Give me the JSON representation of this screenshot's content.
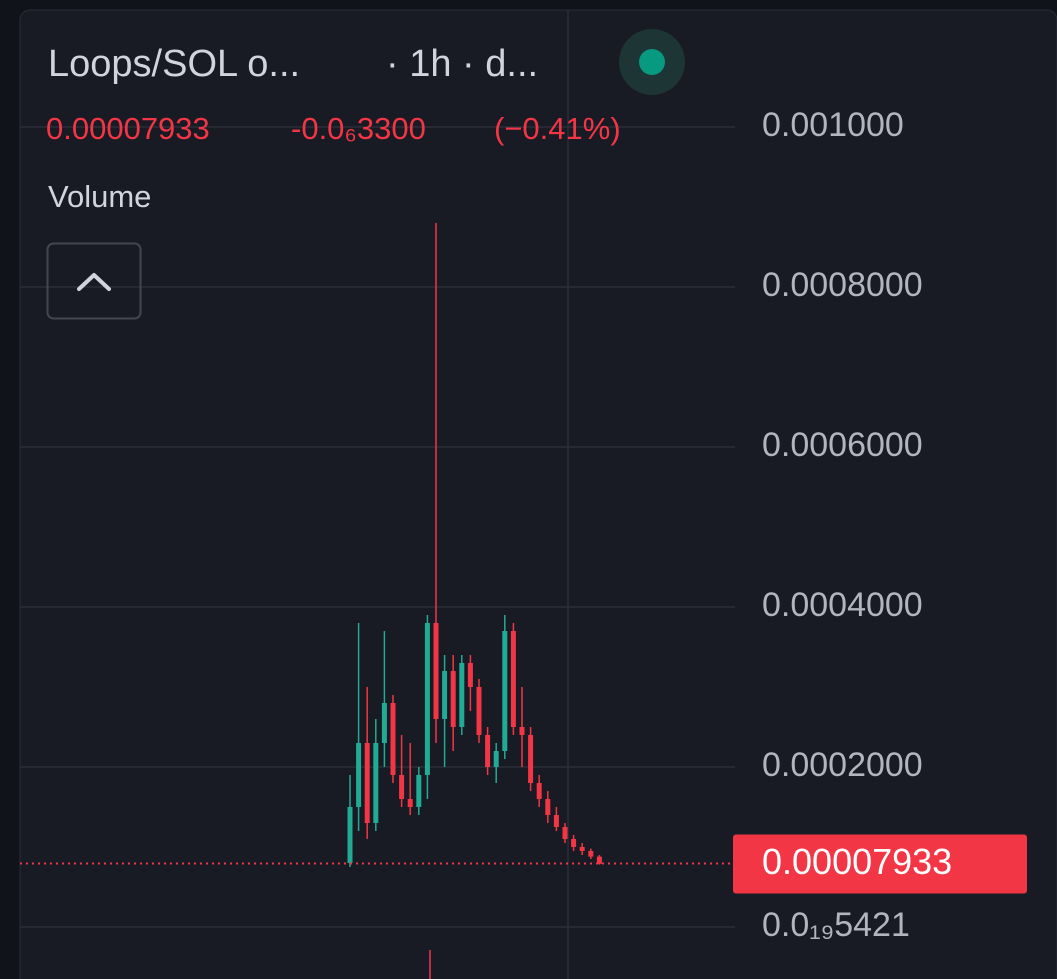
{
  "chart_data": {
    "type": "candlestick",
    "title": "Loops/SOL o...",
    "subtitle": "· 1h · d...",
    "change": "-0.0₆3300",
    "change_pct": "(−0.41%)",
    "indicator": "Volume",
    "last_price": {
      "value": 7.933e-05,
      "label": "0.00007933"
    },
    "up_color": "#22ab94",
    "down_color": "#f23645",
    "ylim": [
      -6.5e-05,
      0.00114625
    ],
    "yticks": [
      {
        "value": 0.001,
        "label": "0.001000"
      },
      {
        "value": 0.0008,
        "label": "0.0008000"
      },
      {
        "value": 0.0006,
        "label": "0.0006000"
      },
      {
        "value": 0.0004,
        "label": "0.0004000"
      },
      {
        "value": 0.0002,
        "label": "0.0002000"
      },
      {
        "value": 5.421e-20,
        "label": "0.0₁₉5421"
      }
    ],
    "grid": true,
    "open": [
      8e-05,
      0.00015,
      0.00023,
      0.00013,
      0.00023,
      0.00028,
      0.00019,
      0.00016,
      0.00015,
      0.00019,
      0.00038,
      0.00026,
      0.00032,
      0.00025,
      0.00033,
      0.0003,
      0.00024,
      0.0002,
      0.00022,
      0.00037,
      0.00025,
      0.00024,
      0.00018,
      0.00016,
      0.00014,
      0.000125,
      0.00011,
      0.0001,
      9.5e-05,
      8.8e-05
    ],
    "high": [
      0.00019,
      0.00038,
      0.0003,
      0.00026,
      0.00037,
      0.00029,
      0.00024,
      0.00023,
      0.0002,
      0.00039,
      0.00088,
      0.00034,
      0.00034,
      0.00034,
      0.00034,
      0.00031,
      0.00025,
      0.00023,
      0.00039,
      0.00038,
      0.0003,
      0.00025,
      0.00019,
      0.00017,
      0.00015,
      0.00013,
      0.000115,
      0.000105,
      9.8e-05,
      9e-05
    ],
    "low": [
      7.5e-05,
      0.00012,
      0.00011,
      0.00012,
      0.0002,
      0.00018,
      0.00015,
      0.00014,
      0.00014,
      0.00016,
      0.00023,
      0.0002,
      0.00022,
      0.00024,
      0.00027,
      0.00023,
      0.00019,
      0.00018,
      0.00021,
      0.00024,
      0.0002,
      0.00017,
      0.00015,
      0.00013,
      0.00012,
      0.000105,
      9.5e-05,
      9e-05,
      8.5e-05,
      7.8e-05
    ],
    "close": [
      0.00015,
      0.00023,
      0.00013,
      0.00023,
      0.00028,
      0.00019,
      0.00016,
      0.00015,
      0.00019,
      0.00038,
      0.00026,
      0.00032,
      0.00025,
      0.00033,
      0.0003,
      0.00024,
      0.0002,
      0.00022,
      0.00037,
      0.00025,
      0.00024,
      0.00018,
      0.00016,
      0.00014,
      0.000125,
      0.00011,
      0.0001,
      9.5e-05,
      8.8e-05,
      7.9e-05
    ]
  }
}
